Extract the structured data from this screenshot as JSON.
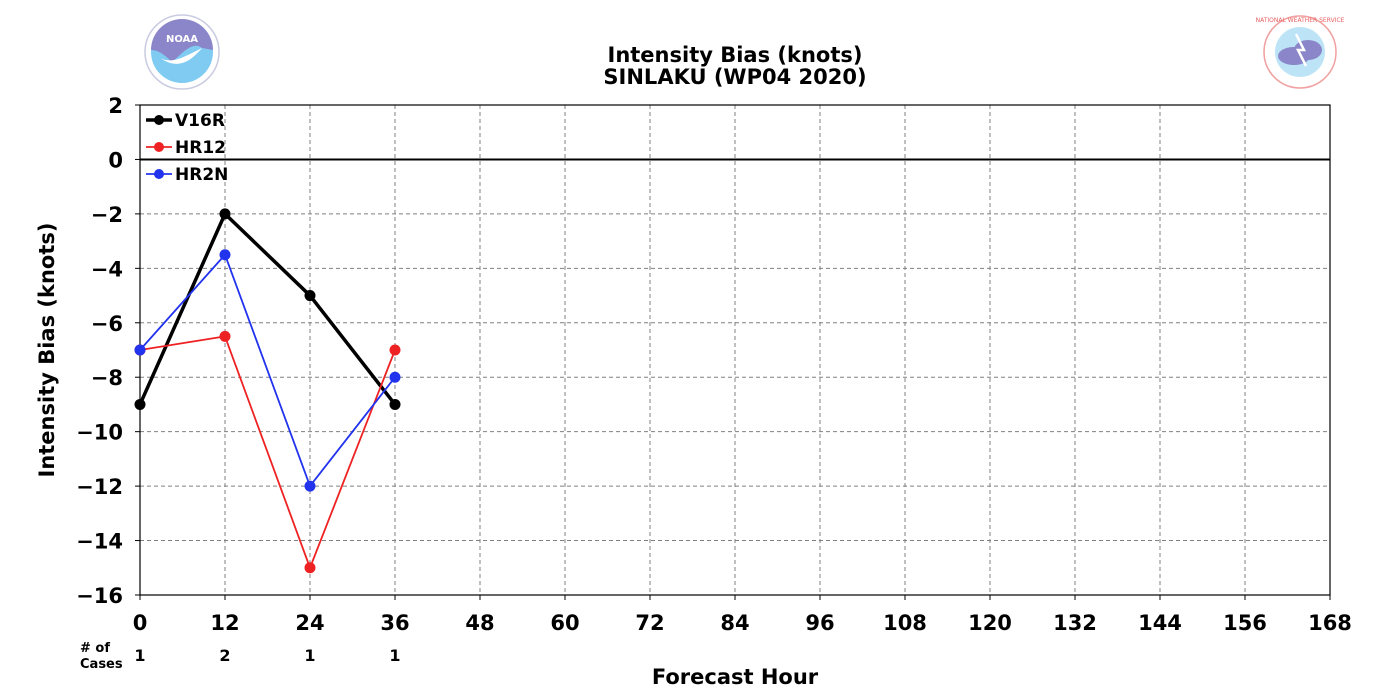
{
  "chart_data": {
    "type": "line",
    "title": "Intensity Bias (knots)",
    "subtitle": "SINLAKU (WP04 2020)",
    "xlabel": "Forecast Hour",
    "ylabel": "Intensity Bias (knots)",
    "xlim": [
      0,
      168
    ],
    "ylim": [
      -16,
      2
    ],
    "xticks": [
      0,
      12,
      24,
      36,
      48,
      60,
      72,
      84,
      96,
      108,
      120,
      132,
      144,
      156,
      168
    ],
    "yticks": [
      2,
      0,
      -2,
      -4,
      -6,
      -8,
      -10,
      -12,
      -14,
      -16
    ],
    "grid": true,
    "legend_position": "top-left",
    "cases_header": "# of Cases",
    "cases": [
      {
        "x": 0,
        "count": "1"
      },
      {
        "x": 12,
        "count": "2"
      },
      {
        "x": 24,
        "count": "1"
      },
      {
        "x": 36,
        "count": "1"
      }
    ],
    "series": [
      {
        "name": "V16R",
        "color": "#000000",
        "x": [
          0,
          12,
          24,
          36
        ],
        "values": [
          -9,
          -2,
          -5,
          -9
        ]
      },
      {
        "name": "HR12",
        "color": "#ee2222",
        "x": [
          0,
          12,
          24,
          36
        ],
        "values": [
          -7,
          -6.5,
          -15,
          -7
        ]
      },
      {
        "name": "HR2N",
        "color": "#2233ee",
        "x": [
          0,
          12,
          24,
          36
        ],
        "values": [
          -7,
          -3.5,
          -12,
          -8
        ]
      }
    ]
  },
  "logos": {
    "left": {
      "name": "noaa-logo",
      "text": "NOAA"
    },
    "right": {
      "name": "nws-logo",
      "text": "NATIONAL WEATHER SERVICE"
    }
  }
}
